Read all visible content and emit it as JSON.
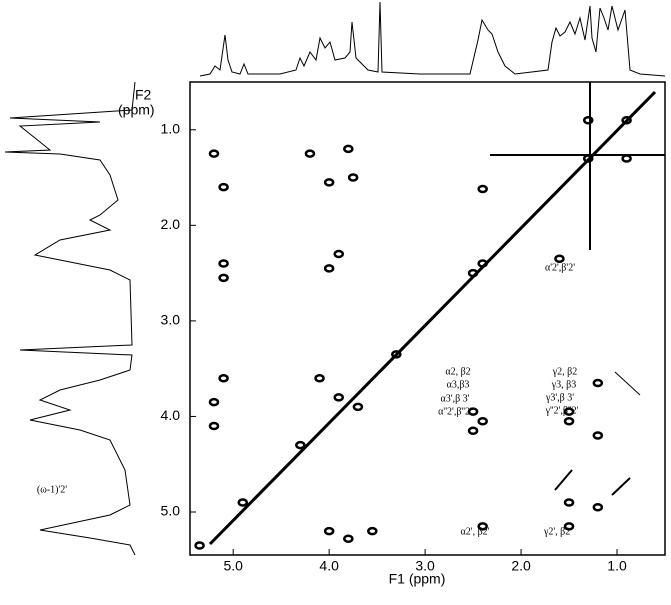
{
  "chart_data": {
    "type": "scatter",
    "x_label": "F1 (ppm)",
    "y_label": [
      "F2",
      "(ppm)"
    ],
    "xlim": [
      5.45,
      0.5
    ],
    "ylim": [
      0.5,
      5.45
    ],
    "xticks": [
      {
        "value": 5,
        "label": "5.0"
      },
      {
        "value": 4,
        "label": "4.0"
      },
      {
        "value": 3,
        "label": "3.0"
      },
      {
        "value": 2,
        "label": "2.0"
      },
      {
        "value": 1,
        "label": "1.0"
      }
    ],
    "yticks": [
      {
        "value": 1,
        "label": "1.0"
      },
      {
        "value": 2,
        "label": "2.0"
      },
      {
        "value": 3,
        "label": "3.0"
      },
      {
        "value": 4,
        "label": "4.0"
      },
      {
        "value": 5,
        "label": "5.0"
      }
    ],
    "color": "#000000",
    "x": [
      5.2,
      4.2,
      3.8,
      5.1,
      4.0,
      3.75,
      5.1,
      5.1,
      4.0,
      3.9,
      2.4,
      1.6,
      5.1,
      5.2,
      5.2,
      4.1,
      3.9,
      3.7,
      2.5,
      2.4,
      2.5,
      1.5,
      1.5,
      1.2,
      1.2,
      2.4,
      1.5,
      1.5,
      1.2,
      4.0,
      3.55,
      3.8,
      3.3,
      1.3,
      0.9,
      0.9,
      1.3,
      4.9,
      5.35,
      4.3,
      2.4,
      2.5
    ],
    "values": [
      1.25,
      1.25,
      1.2,
      1.6,
      1.55,
      1.5,
      2.4,
      2.55,
      2.45,
      2.3,
      1.62,
      2.35,
      3.6,
      3.85,
      4.1,
      3.6,
      3.8,
      3.9,
      3.95,
      4.05,
      4.15,
      3.95,
      4.05,
      4.2,
      3.65,
      5.15,
      5.15,
      4.9,
      4.95,
      5.2,
      5.2,
      5.28,
      3.35,
      1.3,
      0.9,
      1.3,
      0.9,
      4.9,
      5.35,
      4.3,
      2.4,
      2.5
    ],
    "annotations": [
      "α'2',β'2'",
      "α2, β2",
      "α3,β3",
      "α3',β 3'",
      "α''2',β''2'",
      "γ2, β2",
      "γ3, β3",
      "γ3',β 3'",
      "γ''2',β''2'",
      "α2', β2'",
      "γ2', β2'",
      "(ω-1)'2'"
    ]
  }
}
